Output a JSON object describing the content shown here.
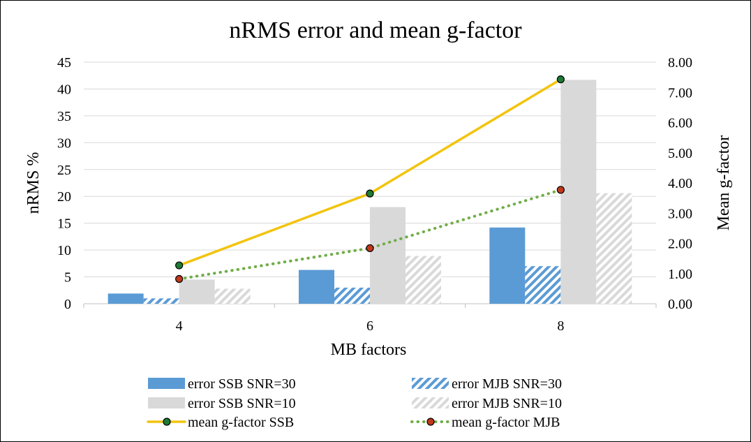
{
  "chart_data": {
    "type": "bar",
    "title": "nRMS error and mean g-factor",
    "xlabel": "MB factors",
    "ylabel": "nRMS %",
    "y2label": "Mean g-factor",
    "categories": [
      "4",
      "6",
      "8"
    ],
    "ylim": [
      0,
      45
    ],
    "y2lim": [
      0,
      8
    ],
    "yticks": [
      "0",
      "5",
      "10",
      "15",
      "20",
      "25",
      "30",
      "35",
      "40",
      "45"
    ],
    "y2ticks": [
      "0.00",
      "1.00",
      "2.00",
      "3.00",
      "4.00",
      "5.00",
      "6.00",
      "7.00",
      "8.00"
    ],
    "grid": true,
    "legend_position": "bottom",
    "bar_series": [
      {
        "name": "error SSB SNR=30",
        "values": [
          1.9,
          6.3,
          14.2
        ],
        "color": "#5b9bd5",
        "pattern": "solid"
      },
      {
        "name": "error MJB SNR=30",
        "values": [
          1.0,
          3.0,
          7.0
        ],
        "color": "#5b9bd5",
        "pattern": "hatched"
      },
      {
        "name": "error SSB SNR=10",
        "values": [
          4.5,
          18.0,
          41.7
        ],
        "color": "#d9d9d9",
        "pattern": "solid"
      },
      {
        "name": "error MJB SNR=10",
        "values": [
          2.8,
          8.9,
          20.6
        ],
        "color": "#d9d9d9",
        "pattern": "hatched"
      }
    ],
    "line_series": [
      {
        "name": "mean g-factor SSB",
        "values": [
          1.27,
          3.65,
          7.43
        ],
        "axis": "right",
        "color": "#f2c40f",
        "style": "solid",
        "marker_fill": "#1e7b34"
      },
      {
        "name": "mean g-factor MJB",
        "values": [
          0.82,
          1.84,
          3.77
        ],
        "axis": "right",
        "color": "#70ad47",
        "style": "dotted",
        "marker_fill": "#c0391b"
      }
    ]
  }
}
